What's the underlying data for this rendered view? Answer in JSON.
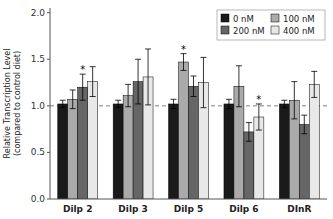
{
  "chart_data": {
    "type": "bar",
    "categories": [
      "Dilp 2",
      "Dilp 3",
      "Dilp 5",
      "Dilp 6",
      "DInR"
    ],
    "series": [
      {
        "name": "0 nM",
        "color": "#1a1a1a",
        "values": [
          1.02,
          1.02,
          1.02,
          1.02,
          1.02
        ],
        "errors": [
          0.04,
          0.04,
          0.05,
          0.05,
          0.04
        ]
      },
      {
        "name": "100 nM",
        "color": "#aaaaaa",
        "values": [
          1.07,
          1.11,
          1.47,
          1.21,
          1.06
        ],
        "errors": [
          0.1,
          0.12,
          0.09,
          0.22,
          0.2
        ]
      },
      {
        "name": "200 nM",
        "color": "#666666",
        "values": [
          1.2,
          1.26,
          1.21,
          0.72,
          0.8
        ],
        "errors": [
          0.14,
          0.24,
          0.11,
          0.1,
          0.1
        ]
      },
      {
        "name": "400 nM",
        "color": "#e8e8e8",
        "values": [
          1.26,
          1.31,
          1.25,
          0.88,
          1.23
        ],
        "errors": [
          0.16,
          0.3,
          0.27,
          0.14,
          0.14
        ]
      }
    ],
    "annotations": [
      {
        "text": "*",
        "category": "Dilp 2",
        "series": "200 nM"
      },
      {
        "text": "*",
        "category": "Dilp 5",
        "series": "100 nM"
      },
      {
        "text": "*",
        "category": "Dilp 6",
        "series": "400 nM"
      }
    ],
    "hlines": [
      1.0
    ],
    "ylim": [
      0.0,
      2.05
    ],
    "yticks": [
      {
        "value": 0.0,
        "label": "0.0"
      },
      {
        "value": 0.5,
        "label": "0.5"
      },
      {
        "value": 1.0,
        "label": "1.0"
      },
      {
        "value": 1.5,
        "label": "1.5"
      },
      {
        "value": 2.0,
        "label": "2.0"
      }
    ],
    "ylabel": "Relative Transcription Level\n(compared to control diet)",
    "legend": "upper right",
    "grid": false
  }
}
